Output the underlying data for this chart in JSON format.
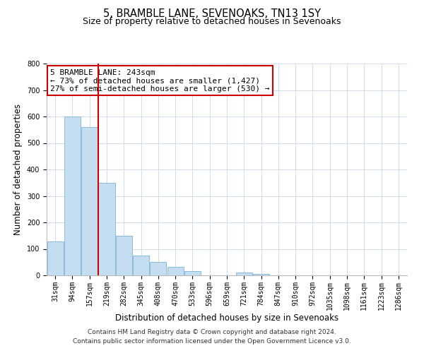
{
  "title": "5, BRAMBLE LANE, SEVENOAKS, TN13 1SY",
  "subtitle": "Size of property relative to detached houses in Sevenoaks",
  "xlabel": "Distribution of detached houses by size in Sevenoaks",
  "ylabel": "Number of detached properties",
  "bin_labels": [
    "31sqm",
    "94sqm",
    "157sqm",
    "219sqm",
    "282sqm",
    "345sqm",
    "408sqm",
    "470sqm",
    "533sqm",
    "596sqm",
    "659sqm",
    "721sqm",
    "784sqm",
    "847sqm",
    "910sqm",
    "972sqm",
    "1035sqm",
    "1098sqm",
    "1161sqm",
    "1223sqm",
    "1286sqm"
  ],
  "bar_values": [
    128,
    600,
    560,
    350,
    150,
    75,
    50,
    33,
    15,
    0,
    0,
    10,
    5,
    0,
    0,
    0,
    0,
    0,
    0,
    0,
    0
  ],
  "bar_color": "#c5ddf0",
  "bar_edge_color": "#7ab4d8",
  "vline_index": 3,
  "vline_color": "#cc0000",
  "annotation_line1": "5 BRAMBLE LANE: 243sqm",
  "annotation_line2": "← 73% of detached houses are smaller (1,427)",
  "annotation_line3": "27% of semi-detached houses are larger (530) →",
  "annotation_box_color": "#ffffff",
  "annotation_box_edge_color": "#cc0000",
  "ylim": [
    0,
    800
  ],
  "yticks": [
    0,
    100,
    200,
    300,
    400,
    500,
    600,
    700,
    800
  ],
  "footer_line1": "Contains HM Land Registry data © Crown copyright and database right 2024.",
  "footer_line2": "Contains public sector information licensed under the Open Government Licence v3.0.",
  "bg_color": "#ffffff",
  "grid_color": "#d0dcea",
  "title_fontsize": 10.5,
  "subtitle_fontsize": 9,
  "axis_label_fontsize": 8.5,
  "tick_fontsize": 7,
  "annotation_fontsize": 8,
  "footer_fontsize": 6.5
}
